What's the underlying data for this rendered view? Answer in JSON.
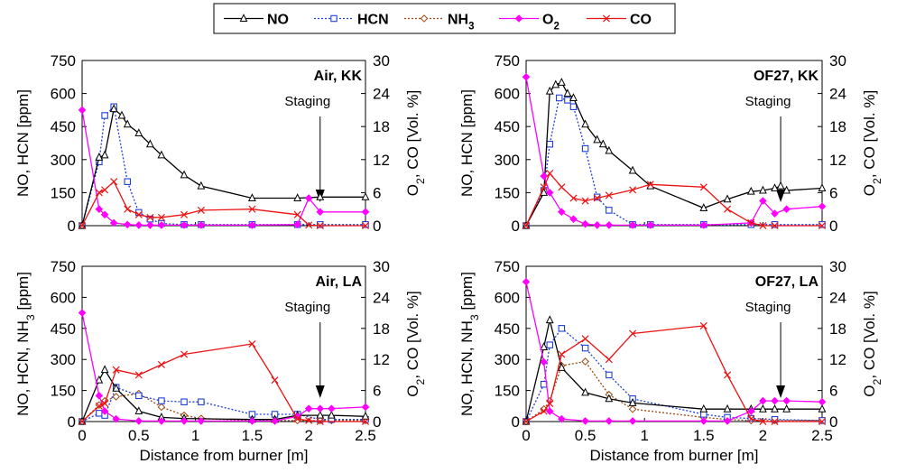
{
  "legend": [
    {
      "name": "NO",
      "color": "#000000",
      "marker": "triangle",
      "dash": "solid"
    },
    {
      "name": "HCN",
      "color": "#1f3fd8",
      "marker": "square",
      "dash": "dot"
    },
    {
      "name": "NH3",
      "color": "#9a4a10",
      "marker": "diamond",
      "dash": "dot"
    },
    {
      "name": "O2",
      "color": "#ff00ff",
      "marker": "diamond-filled",
      "dash": "solid"
    },
    {
      "name": "CO",
      "color": "#ee1111",
      "marker": "x",
      "dash": "solid"
    }
  ],
  "xlabel": "Distance from burner [m]",
  "chart_data": [
    {
      "type": "line",
      "title": "Air, KK",
      "annotation": "Staging",
      "annotation_x": 2.1,
      "ylabel_left": "NO, HCN [ppm]",
      "ylabel_right": "O2, CO [Vol. %]",
      "xlim": [
        0,
        2.5
      ],
      "ylim_left": [
        0,
        750
      ],
      "ylim_right": [
        0,
        30
      ],
      "xticks": [
        "0",
        "0.5",
        "1",
        "1.5",
        "2",
        "2.5"
      ],
      "yticks_left": [
        "0",
        "150",
        "300",
        "450",
        "600",
        "750"
      ],
      "yticks_right": [
        "0",
        "6",
        "12",
        "18",
        "24",
        "30"
      ],
      "series": [
        {
          "name": "NO",
          "axis": "left",
          "x": [
            0,
            0.15,
            0.2,
            0.28,
            0.35,
            0.4,
            0.5,
            0.6,
            0.7,
            0.9,
            1.05,
            1.5,
            1.9,
            2.1,
            2.5
          ],
          "y": [
            0,
            310,
            320,
            530,
            500,
            460,
            420,
            370,
            320,
            230,
            180,
            125,
            125,
            130,
            130
          ]
        },
        {
          "name": "HCN",
          "axis": "left",
          "x": [
            0,
            0.15,
            0.2,
            0.28,
            0.4,
            0.5,
            0.6,
            0.7,
            0.9,
            1.05,
            1.5,
            1.9,
            2.1,
            2.5
          ],
          "y": [
            0,
            290,
            500,
            540,
            200,
            60,
            30,
            10,
            5,
            5,
            5,
            5,
            5,
            5
          ]
        },
        {
          "name": "O2",
          "axis": "right",
          "x": [
            0,
            0.15,
            0.2,
            0.28,
            0.4,
            0.5,
            0.6,
            0.7,
            0.9,
            1.05,
            1.5,
            1.9,
            2.0,
            2.1,
            2.5
          ],
          "y": [
            21,
            3,
            2,
            0.5,
            0.2,
            0.1,
            0.1,
            0.1,
            0.1,
            0.1,
            0.1,
            0.2,
            5,
            2.5,
            2.5
          ]
        },
        {
          "name": "CO",
          "axis": "right",
          "x": [
            0,
            0.15,
            0.2,
            0.28,
            0.4,
            0.5,
            0.6,
            0.7,
            0.9,
            1.05,
            1.5,
            1.9,
            2.0,
            2.1,
            2.5
          ],
          "y": [
            0,
            6,
            6.5,
            8,
            3,
            2,
            1.5,
            1.5,
            2,
            2.8,
            3,
            2,
            0.1,
            0,
            0
          ]
        }
      ]
    },
    {
      "type": "line",
      "title": "OF27, KK",
      "annotation": "Staging",
      "annotation_x": 2.15,
      "ylabel_left": "NO, HCN [ppm]",
      "ylabel_right": "O2, CO [Vol. %]",
      "xlim": [
        0,
        2.5
      ],
      "ylim_left": [
        0,
        750
      ],
      "ylim_right": [
        0,
        30
      ],
      "xticks": [
        "0",
        "0.5",
        "1",
        "1.5",
        "2",
        "2.5"
      ],
      "yticks_left": [
        "0",
        "150",
        "300",
        "450",
        "600",
        "750"
      ],
      "yticks_right": [
        "0",
        "6",
        "12",
        "18",
        "24",
        "30"
      ],
      "series": [
        {
          "name": "NO",
          "axis": "left",
          "x": [
            0,
            0.15,
            0.2,
            0.25,
            0.3,
            0.35,
            0.4,
            0.5,
            0.6,
            0.65,
            0.7,
            0.9,
            1.05,
            1.5,
            1.7,
            1.9,
            2.0,
            2.1,
            2.15,
            2.2,
            2.5
          ],
          "y": [
            0,
            150,
            610,
            640,
            650,
            600,
            580,
            460,
            390,
            370,
            340,
            250,
            180,
            80,
            120,
            155,
            160,
            170,
            180,
            160,
            170
          ]
        },
        {
          "name": "HCN",
          "axis": "left",
          "x": [
            0,
            0.15,
            0.2,
            0.28,
            0.35,
            0.4,
            0.5,
            0.6,
            0.7,
            0.9,
            1.05,
            1.5,
            1.9,
            2.1,
            2.5
          ],
          "y": [
            0,
            160,
            370,
            580,
            570,
            540,
            350,
            130,
            70,
            5,
            5,
            5,
            5,
            5,
            5
          ]
        },
        {
          "name": "O2",
          "axis": "right",
          "x": [
            0,
            0.15,
            0.2,
            0.3,
            0.4,
            0.5,
            0.6,
            0.7,
            0.9,
            1.05,
            1.5,
            1.9,
            2.0,
            2.1,
            2.2,
            2.5
          ],
          "y": [
            27,
            9,
            6,
            2.5,
            1.2,
            0.3,
            0.1,
            0.1,
            0.1,
            0.1,
            0.1,
            0.5,
            4.5,
            2.2,
            3,
            3.5
          ]
        },
        {
          "name": "CO",
          "axis": "right",
          "x": [
            0,
            0.15,
            0.2,
            0.3,
            0.4,
            0.5,
            0.6,
            0.7,
            0.9,
            1.05,
            1.5,
            1.7,
            1.9,
            2.0,
            2.1,
            2.5
          ],
          "y": [
            0,
            7,
            9.5,
            7,
            5,
            4.5,
            5,
            5.5,
            6.5,
            7.5,
            7,
            3,
            0.5,
            0,
            0,
            0
          ]
        }
      ]
    },
    {
      "type": "line",
      "title": "Air, LA",
      "annotation": "Staging",
      "annotation_x": 2.1,
      "ylabel_left": "NO, HCN, NH3 [ppm]",
      "ylabel_right": "O2, CO [Vol. %]",
      "xlim": [
        0,
        2.5
      ],
      "ylim_left": [
        0,
        750
      ],
      "ylim_right": [
        0,
        30
      ],
      "xticks": [
        "0",
        "0.5",
        "1",
        "1.5",
        "2",
        "2.5"
      ],
      "yticks_left": [
        "0",
        "150",
        "300",
        "450",
        "600",
        "750"
      ],
      "yticks_right": [
        "0",
        "6",
        "12",
        "18",
        "24",
        "30"
      ],
      "series": [
        {
          "name": "NO",
          "axis": "left",
          "x": [
            0,
            0.15,
            0.2,
            0.3,
            0.5,
            0.7,
            0.9,
            1.5,
            1.7,
            1.9,
            2.1,
            2.2,
            2.5
          ],
          "y": [
            0,
            200,
            250,
            160,
            50,
            20,
            15,
            10,
            10,
            30,
            30,
            30,
            25
          ]
        },
        {
          "name": "HCN",
          "axis": "left",
          "x": [
            0,
            0.15,
            0.2,
            0.3,
            0.5,
            0.7,
            0.9,
            1.05,
            1.5,
            1.7,
            1.9,
            2.1,
            2.2,
            2.5
          ],
          "y": [
            0,
            40,
            30,
            165,
            125,
            100,
            95,
            95,
            35,
            35,
            35,
            10,
            10,
            10
          ]
        },
        {
          "name": "NH3",
          "axis": "left",
          "x": [
            0,
            0.15,
            0.2,
            0.3,
            0.5,
            0.7,
            0.9,
            1.05,
            1.5,
            1.7,
            1.9,
            2.1,
            2.2,
            2.5
          ],
          "y": [
            0,
            80,
            100,
            120,
            135,
            70,
            30,
            15,
            5,
            5,
            5,
            5,
            5,
            5
          ]
        },
        {
          "name": "O2",
          "axis": "right",
          "x": [
            0,
            0.15,
            0.2,
            0.3,
            0.5,
            0.7,
            0.9,
            1.05,
            1.5,
            1.7,
            1.9,
            2.0,
            2.1,
            2.2,
            2.5
          ],
          "y": [
            21,
            5,
            2,
            0.5,
            0.1,
            0.1,
            0.1,
            0.1,
            0.1,
            0.1,
            1,
            2.5,
            2.5,
            2.5,
            2.8
          ]
        },
        {
          "name": "CO",
          "axis": "right",
          "x": [
            0,
            0.15,
            0.2,
            0.3,
            0.5,
            0.7,
            0.9,
            1.5,
            1.7,
            1.9,
            2.0,
            2.1,
            2.5
          ],
          "y": [
            0,
            3,
            3.5,
            10,
            9,
            11,
            13,
            15,
            8,
            0.5,
            0.2,
            0,
            0
          ]
        }
      ]
    },
    {
      "type": "line",
      "title": "OF27, LA",
      "annotation": "Staging",
      "annotation_x": 2.15,
      "ylabel_left": "NO, HCN, NH3 [ppm]",
      "ylabel_right": "O2, CO [Vol. %]",
      "xlim": [
        0,
        2.5
      ],
      "ylim_left": [
        0,
        750
      ],
      "ylim_right": [
        0,
        30
      ],
      "xticks": [
        "0",
        "0.5",
        "1",
        "1.5",
        "2",
        "2.5"
      ],
      "yticks_left": [
        "0",
        "150",
        "300",
        "450",
        "600",
        "750"
      ],
      "yticks_right": [
        "0",
        "6",
        "12",
        "18",
        "24",
        "30"
      ],
      "series": [
        {
          "name": "NO",
          "axis": "left",
          "x": [
            0,
            0.15,
            0.2,
            0.3,
            0.5,
            0.7,
            0.9,
            1.5,
            1.7,
            1.9,
            2.0,
            2.1,
            2.2,
            2.5
          ],
          "y": [
            0,
            360,
            490,
            260,
            140,
            110,
            90,
            60,
            60,
            60,
            60,
            60,
            60,
            60
          ]
        },
        {
          "name": "HCN",
          "axis": "left",
          "x": [
            0,
            0.15,
            0.2,
            0.3,
            0.5,
            0.7,
            0.9,
            1.5,
            1.7,
            1.9,
            2.1,
            2.5
          ],
          "y": [
            0,
            180,
            370,
            450,
            355,
            225,
            110,
            35,
            20,
            15,
            10,
            5
          ]
        },
        {
          "name": "NH3",
          "axis": "left",
          "x": [
            0,
            0.15,
            0.2,
            0.3,
            0.5,
            0.7,
            0.9,
            1.5,
            1.7,
            1.9,
            2.1,
            2.5
          ],
          "y": [
            0,
            60,
            100,
            270,
            290,
            130,
            60,
            20,
            10,
            5,
            5,
            5
          ]
        },
        {
          "name": "O2",
          "axis": "right",
          "x": [
            0,
            0.15,
            0.2,
            0.3,
            0.5,
            0.7,
            0.9,
            1.5,
            1.7,
            1.9,
            2.0,
            2.1,
            2.2,
            2.5
          ],
          "y": [
            27,
            11.5,
            2,
            0.5,
            0.1,
            0.1,
            0.1,
            0.1,
            0.1,
            2,
            4,
            4,
            4,
            3.8
          ]
        },
        {
          "name": "CO",
          "axis": "right",
          "x": [
            0,
            0.15,
            0.2,
            0.3,
            0.5,
            0.7,
            0.9,
            1.5,
            1.7,
            1.9,
            2.0,
            2.1,
            2.5
          ],
          "y": [
            0,
            2,
            3.5,
            13,
            16,
            12,
            17,
            18.5,
            9,
            0.5,
            0,
            0,
            0
          ]
        }
      ]
    }
  ]
}
